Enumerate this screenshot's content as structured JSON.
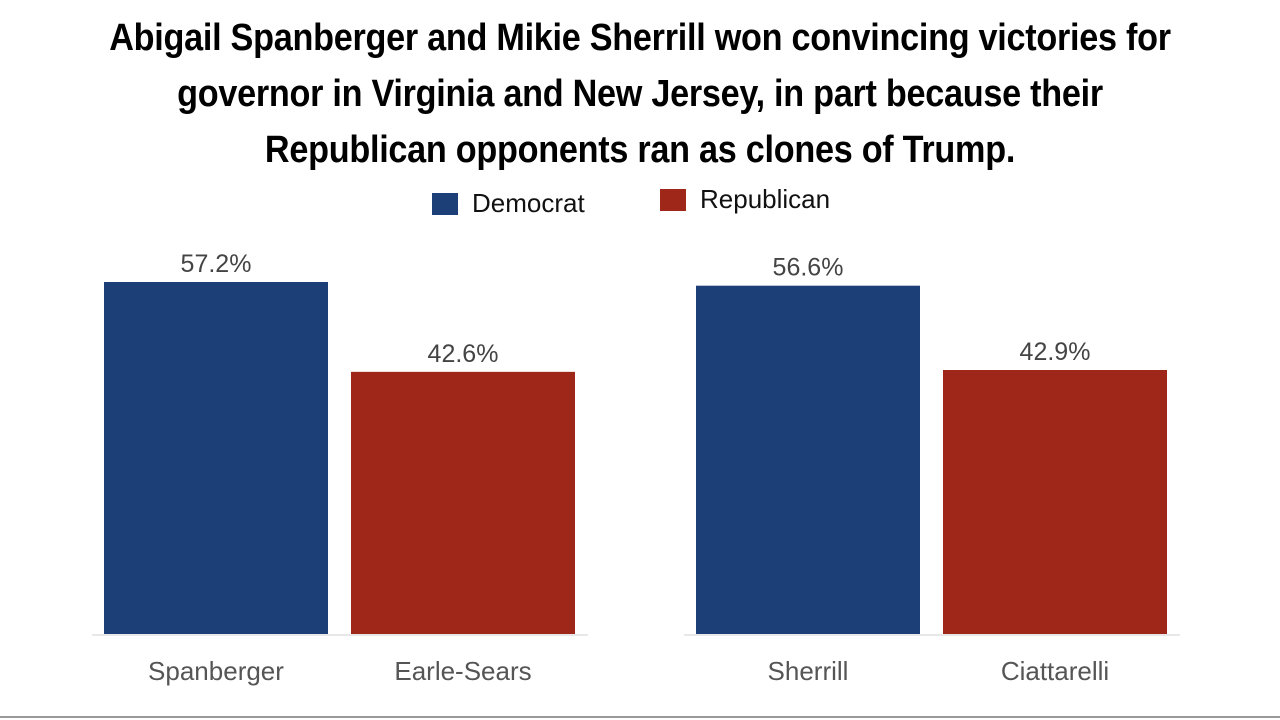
{
  "title": "Abigail Spanberger and Mikie Sherrill won convincing victories for governor in Virginia and New Jersey, in part because their Republican opponents ran as clones of Trump.",
  "legend": [
    {
      "label": "Democrat",
      "color": "#1c3f77"
    },
    {
      "label": "Republican",
      "color": "#9e2719"
    }
  ],
  "chart_data": [
    {
      "type": "bar",
      "categories": [
        "Spanberger",
        "Earle-Sears"
      ],
      "values": [
        57.2,
        42.6
      ],
      "value_labels": [
        "57.2%",
        "42.6%"
      ],
      "bar_colors": [
        "#1c3f77",
        "#9e2719"
      ],
      "ylim": [
        0,
        60
      ],
      "grid": false,
      "legend_position": "top"
    },
    {
      "type": "bar",
      "categories": [
        "Sherrill",
        "Ciattarelli"
      ],
      "values": [
        56.6,
        42.9
      ],
      "value_labels": [
        "56.6%",
        "42.9%"
      ],
      "bar_colors": [
        "#1c3f77",
        "#9e2719"
      ],
      "ylim": [
        0,
        60
      ],
      "grid": false,
      "legend_position": "top"
    }
  ]
}
